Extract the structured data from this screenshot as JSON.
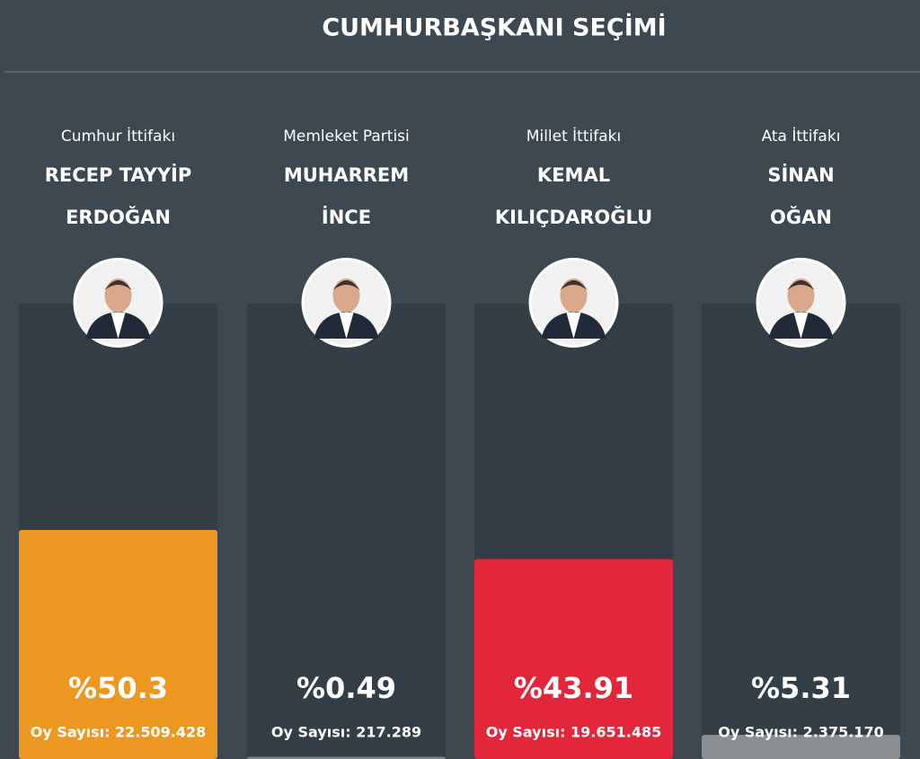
{
  "chart_data": {
    "type": "bar",
    "title": "CUMHURBAŞKANI SEÇİMİ",
    "alliances": [
      "Cumhur İttifakı",
      "Memleket Partisi",
      "Millet İttifakı",
      "Ata İttifakı"
    ],
    "names": [
      [
        "RECEP TAYYİP",
        "ERDOĞAN"
      ],
      [
        "MUHARREM",
        "İNCE"
      ],
      [
        "KEMAL",
        "KILIÇDAROĞLU"
      ],
      [
        "SİNAN",
        "OĞAN"
      ]
    ],
    "values": [
      50.3,
      0.49,
      43.91,
      5.31
    ],
    "value_labels": [
      "%50.3",
      "%0.49",
      "%43.91",
      "%5.31"
    ],
    "vote_labels": [
      "Oy Sayısı: 22.509.428",
      "Oy Sayısı: 217.289",
      "Oy Sayısı: 19.651.485",
      "Oy Sayısı: 2.375.170"
    ],
    "colors": [
      "#ec9722",
      "#7a8288",
      "#e2273a",
      "#8b8f92"
    ],
    "ylim": [
      0,
      100
    ]
  }
}
